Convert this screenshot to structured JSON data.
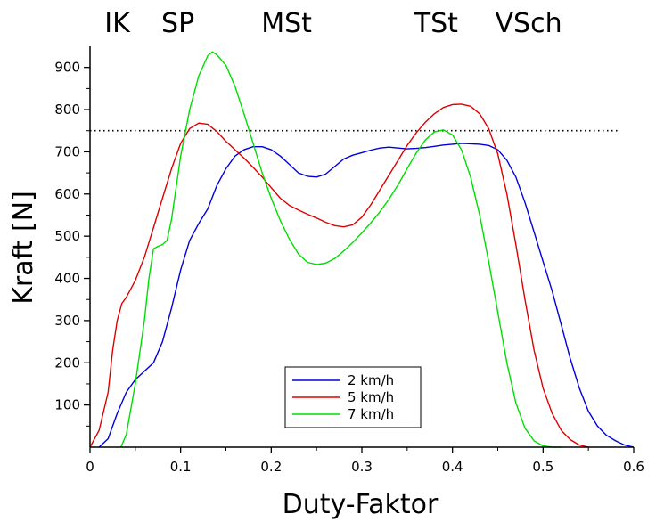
{
  "chart_data": {
    "type": "line",
    "title": "",
    "xlabel": "Duty-Faktor",
    "ylabel": "Kraft [N]",
    "xlim": [
      0,
      0.6
    ],
    "ylim": [
      0,
      950
    ],
    "x_ticks": [
      "0",
      "0.1",
      "0.2",
      "0.3",
      "0.4",
      "0.5",
      "0.6"
    ],
    "y_ticks": [
      "100",
      "200",
      "300",
      "400",
      "500",
      "600",
      "700",
      "800",
      "900"
    ],
    "phase_labels": [
      {
        "label": "IK",
        "x": 0.03
      },
      {
        "label": "SP",
        "x": 0.097
      },
      {
        "label": "MSt",
        "x": 0.217
      },
      {
        "label": "TSt",
        "x": 0.382
      },
      {
        "label": "VSch",
        "x": 0.484
      }
    ],
    "reference_line": {
      "y": 750,
      "style": "dotted"
    },
    "legend_position": "bottom-center",
    "series": [
      {
        "name": "2 km/h",
        "color": "#0000dd",
        "points": [
          [
            0.01,
            0
          ],
          [
            0.02,
            20
          ],
          [
            0.03,
            80
          ],
          [
            0.04,
            130
          ],
          [
            0.05,
            160
          ],
          [
            0.06,
            180
          ],
          [
            0.07,
            200
          ],
          [
            0.08,
            250
          ],
          [
            0.09,
            330
          ],
          [
            0.1,
            420
          ],
          [
            0.11,
            490
          ],
          [
            0.12,
            530
          ],
          [
            0.13,
            565
          ],
          [
            0.14,
            620
          ],
          [
            0.15,
            660
          ],
          [
            0.16,
            690
          ],
          [
            0.17,
            705
          ],
          [
            0.18,
            712
          ],
          [
            0.19,
            712
          ],
          [
            0.2,
            705
          ],
          [
            0.21,
            690
          ],
          [
            0.22,
            670
          ],
          [
            0.23,
            650
          ],
          [
            0.24,
            642
          ],
          [
            0.25,
            640
          ],
          [
            0.26,
            647
          ],
          [
            0.27,
            665
          ],
          [
            0.28,
            683
          ],
          [
            0.29,
            692
          ],
          [
            0.3,
            698
          ],
          [
            0.31,
            704
          ],
          [
            0.32,
            709
          ],
          [
            0.33,
            711
          ],
          [
            0.34,
            709
          ],
          [
            0.35,
            707
          ],
          [
            0.36,
            708
          ],
          [
            0.37,
            710
          ],
          [
            0.38,
            713
          ],
          [
            0.39,
            716
          ],
          [
            0.4,
            718
          ],
          [
            0.41,
            720
          ],
          [
            0.42,
            719
          ],
          [
            0.43,
            718
          ],
          [
            0.44,
            715
          ],
          [
            0.45,
            705
          ],
          [
            0.46,
            680
          ],
          [
            0.47,
            640
          ],
          [
            0.48,
            580
          ],
          [
            0.49,
            510
          ],
          [
            0.5,
            440
          ],
          [
            0.51,
            370
          ],
          [
            0.52,
            290
          ],
          [
            0.53,
            210
          ],
          [
            0.54,
            140
          ],
          [
            0.55,
            85
          ],
          [
            0.56,
            50
          ],
          [
            0.57,
            28
          ],
          [
            0.58,
            15
          ],
          [
            0.59,
            5
          ],
          [
            0.6,
            0
          ]
        ]
      },
      {
        "name": "5 km/h",
        "color": "#dd0000",
        "points": [
          [
            0,
            0
          ],
          [
            0.01,
            40
          ],
          [
            0.02,
            130
          ],
          [
            0.025,
            230
          ],
          [
            0.03,
            300
          ],
          [
            0.035,
            340
          ],
          [
            0.04,
            355
          ],
          [
            0.05,
            395
          ],
          [
            0.06,
            450
          ],
          [
            0.07,
            520
          ],
          [
            0.08,
            590
          ],
          [
            0.09,
            660
          ],
          [
            0.1,
            720
          ],
          [
            0.11,
            755
          ],
          [
            0.12,
            768
          ],
          [
            0.13,
            765
          ],
          [
            0.14,
            748
          ],
          [
            0.15,
            725
          ],
          [
            0.16,
            705
          ],
          [
            0.17,
            685
          ],
          [
            0.18,
            663
          ],
          [
            0.19,
            640
          ],
          [
            0.2,
            615
          ],
          [
            0.21,
            590
          ],
          [
            0.22,
            573
          ],
          [
            0.23,
            562
          ],
          [
            0.24,
            552
          ],
          [
            0.25,
            543
          ],
          [
            0.26,
            533
          ],
          [
            0.27,
            525
          ],
          [
            0.28,
            522
          ],
          [
            0.29,
            527
          ],
          [
            0.3,
            545
          ],
          [
            0.31,
            575
          ],
          [
            0.32,
            610
          ],
          [
            0.33,
            645
          ],
          [
            0.34,
            680
          ],
          [
            0.35,
            715
          ],
          [
            0.36,
            745
          ],
          [
            0.37,
            770
          ],
          [
            0.38,
            790
          ],
          [
            0.39,
            805
          ],
          [
            0.4,
            812
          ],
          [
            0.41,
            813
          ],
          [
            0.42,
            808
          ],
          [
            0.43,
            790
          ],
          [
            0.44,
            755
          ],
          [
            0.45,
            695
          ],
          [
            0.46,
            600
          ],
          [
            0.47,
            480
          ],
          [
            0.48,
            350
          ],
          [
            0.49,
            230
          ],
          [
            0.5,
            140
          ],
          [
            0.51,
            80
          ],
          [
            0.52,
            40
          ],
          [
            0.53,
            18
          ],
          [
            0.54,
            5
          ],
          [
            0.55,
            0
          ]
        ]
      },
      {
        "name": "7 km/h",
        "color": "#00dd00",
        "points": [
          [
            0.034,
            0
          ],
          [
            0.04,
            30
          ],
          [
            0.05,
            150
          ],
          [
            0.06,
            300
          ],
          [
            0.065,
            400
          ],
          [
            0.07,
            470
          ],
          [
            0.075,
            476
          ],
          [
            0.08,
            480
          ],
          [
            0.085,
            490
          ],
          [
            0.09,
            540
          ],
          [
            0.1,
            690
          ],
          [
            0.11,
            800
          ],
          [
            0.12,
            880
          ],
          [
            0.13,
            928
          ],
          [
            0.135,
            937
          ],
          [
            0.14,
            930
          ],
          [
            0.15,
            905
          ],
          [
            0.16,
            855
          ],
          [
            0.17,
            790
          ],
          [
            0.18,
            720
          ],
          [
            0.19,
            650
          ],
          [
            0.2,
            590
          ],
          [
            0.21,
            537
          ],
          [
            0.22,
            493
          ],
          [
            0.23,
            458
          ],
          [
            0.24,
            438
          ],
          [
            0.25,
            433
          ],
          [
            0.26,
            436
          ],
          [
            0.27,
            447
          ],
          [
            0.28,
            465
          ],
          [
            0.29,
            485
          ],
          [
            0.3,
            508
          ],
          [
            0.31,
            532
          ],
          [
            0.32,
            558
          ],
          [
            0.33,
            588
          ],
          [
            0.34,
            622
          ],
          [
            0.35,
            660
          ],
          [
            0.36,
            697
          ],
          [
            0.37,
            728
          ],
          [
            0.38,
            747
          ],
          [
            0.39,
            752
          ],
          [
            0.4,
            740
          ],
          [
            0.41,
            705
          ],
          [
            0.42,
            640
          ],
          [
            0.43,
            550
          ],
          [
            0.44,
            440
          ],
          [
            0.45,
            320
          ],
          [
            0.46,
            200
          ],
          [
            0.47,
            105
          ],
          [
            0.48,
            45
          ],
          [
            0.49,
            15
          ],
          [
            0.5,
            3
          ],
          [
            0.51,
            0
          ],
          [
            0.52,
            0
          ]
        ]
      }
    ]
  }
}
